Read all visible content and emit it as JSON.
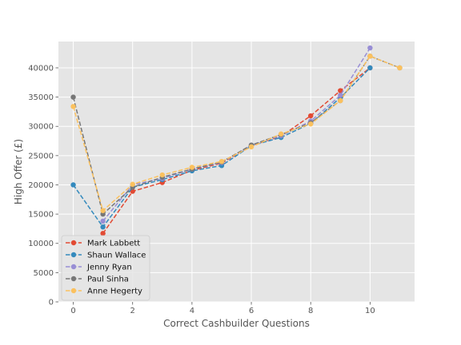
{
  "chart_data": {
    "type": "line",
    "title": "",
    "xlabel": "Correct Cashbuilder Questions",
    "ylabel": "High Offer (£)",
    "xlim": [
      -0.5,
      11.5
    ],
    "ylim": [
      0,
      44500
    ],
    "xticks": [
      0,
      2,
      4,
      6,
      8,
      10
    ],
    "yticks": [
      0,
      5000,
      10000,
      15000,
      20000,
      25000,
      30000,
      35000,
      40000
    ],
    "grid": true,
    "legend_position": "lower-left",
    "series": [
      {
        "name": "Mark Labbett",
        "color": "#E24A33",
        "x": [
          1,
          2,
          3,
          4,
          5,
          6,
          7,
          8,
          9,
          10
        ],
        "y": [
          11700,
          18900,
          20400,
          22500,
          23700,
          26700,
          28300,
          31800,
          36100,
          40000
        ]
      },
      {
        "name": "Shaun Wallace",
        "color": "#348ABD",
        "x": [
          0,
          1,
          2,
          3,
          4,
          5,
          6,
          7,
          8,
          9,
          10
        ],
        "y": [
          20000,
          12800,
          19600,
          20900,
          22400,
          23300,
          26700,
          28100,
          30500,
          34900,
          40000
        ]
      },
      {
        "name": "Jenny Ryan",
        "color": "#988ED5",
        "x": [
          1,
          2,
          3,
          4,
          5,
          6,
          7,
          8,
          9,
          10
        ],
        "y": [
          13800,
          20000,
          21100,
          22700,
          23800,
          26800,
          28400,
          30900,
          35300,
          43400
        ]
      },
      {
        "name": "Paul Sinha",
        "color": "#777777",
        "x": [
          0,
          1,
          2,
          3,
          4,
          5,
          6,
          7,
          8,
          9,
          10,
          11
        ],
        "y": [
          35000,
          15000,
          19600,
          21300,
          22700,
          23900,
          26800,
          28600,
          30600,
          34400,
          42000,
          40000
        ]
      },
      {
        "name": "Anne Hegerty",
        "color": "#FBC15E",
        "x": [
          0,
          1,
          2,
          3,
          4,
          5,
          6,
          7,
          8,
          9,
          10,
          11
        ],
        "y": [
          33400,
          15600,
          20100,
          21700,
          23000,
          24000,
          26500,
          28700,
          30400,
          34400,
          42000,
          40000
        ]
      }
    ]
  }
}
